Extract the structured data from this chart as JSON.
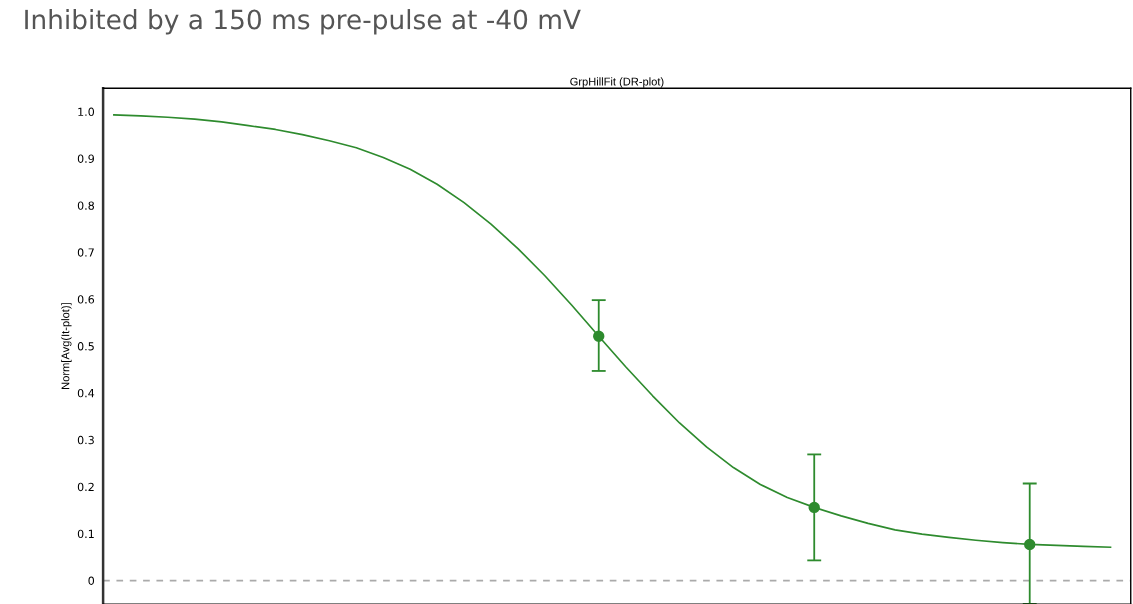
{
  "chart_data": {
    "type": "line",
    "title": "Inhibited by a 150 ms pre-pulse at -40 mV",
    "subtitle": "GrpHillFit (DR-plot)",
    "ylabel": "Norm[Avg(It-plot)]",
    "categories": [
      null,
      null,
      null,
      null,
      null,
      null,
      null,
      null,
      null,
      null,
      null,
      null,
      null,
      null,
      null,
      null,
      null,
      null,
      null,
      null,
      null,
      null,
      null,
      null,
      null,
      null,
      null,
      null,
      null,
      null,
      null,
      null,
      null,
      null,
      null,
      null,
      null,
      null
    ],
    "series": [
      {
        "color": "#2e8b2e",
        "marker": "none",
        "values": [
          0.993,
          0.991,
          0.988,
          0.984,
          0.978,
          0.97,
          0.962,
          0.951,
          0.938,
          0.923,
          0.902,
          0.877,
          0.845,
          0.806,
          0.76,
          0.708,
          0.65,
          0.587,
          0.521,
          0.456,
          0.394,
          0.336,
          0.285,
          0.241,
          0.205,
          0.177,
          0.156,
          0.138,
          0.122,
          0.108,
          0.099,
          0.092,
          0.086,
          0.081,
          0.077,
          0.075,
          0.073,
          0.071
        ]
      },
      {
        "type": "scatter",
        "color": "#2e8b2e",
        "marker": "circle",
        "values": [
          null,
          null,
          null,
          null,
          null,
          null,
          null,
          null,
          null,
          null,
          null,
          null,
          null,
          null,
          null,
          null,
          null,
          null,
          0.521,
          null,
          null,
          null,
          null,
          null,
          null,
          null,
          0.156,
          null,
          null,
          null,
          null,
          null,
          null,
          null,
          0.077,
          null,
          null,
          null
        ],
        "errors": [
          null,
          null,
          null,
          null,
          null,
          null,
          null,
          null,
          null,
          null,
          null,
          null,
          null,
          null,
          null,
          null,
          null,
          null,
          [
            0.447,
            0.598
          ],
          null,
          null,
          null,
          null,
          null,
          null,
          null,
          [
            0.043,
            0.269
          ],
          null,
          null,
          null,
          null,
          null,
          null,
          null,
          [
            -0.05,
            0.207
          ],
          null,
          null,
          null
        ]
      }
    ],
    "ylim": [
      -0.05,
      1.05
    ],
    "yticks": [
      0,
      0.1,
      0.2,
      0.3,
      0.4,
      0.5,
      0.6,
      0.7,
      0.8,
      0.9,
      {
        "value": 1,
        "label": "1.0"
      }
    ],
    "tick_labels": "y",
    "grid": false,
    "legend": false,
    "ref_lines": [
      {
        "axis": "y",
        "value": 0,
        "color": "#aaaaaa",
        "line_style": "dashed"
      }
    ]
  }
}
